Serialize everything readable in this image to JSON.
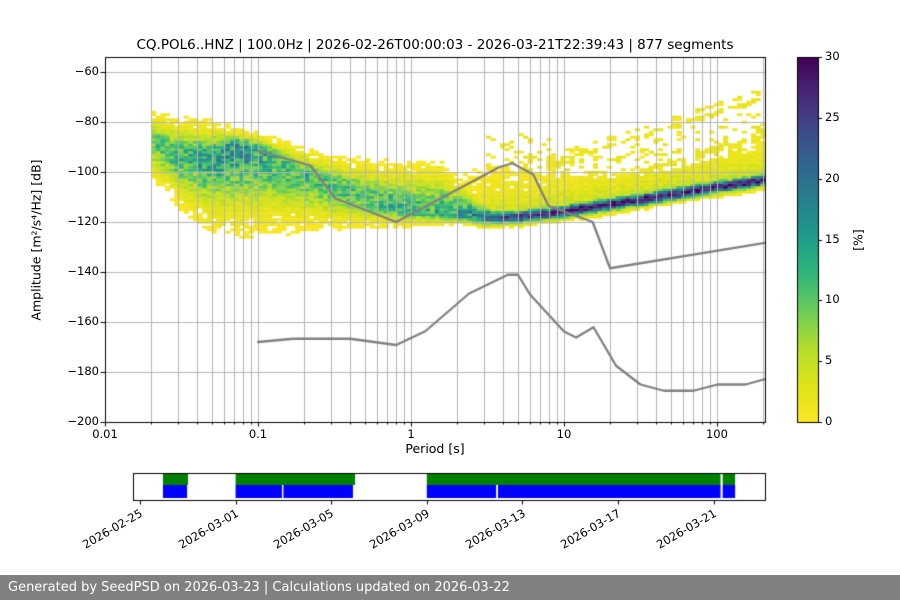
{
  "title": "CQ.POL6..HNZ | 100.0Hz | 2026-02-26T00:00:03 - 2026-03-21T22:39:43 | 877 segments",
  "footer": {
    "text": "Generated by SeedPSD on 2026-03-23 | Calculations updated on 2026-03-22",
    "bg": "#808080",
    "fg": "#ffffff"
  },
  "chart_data": {
    "type": "heatmap",
    "title": "CQ.POL6..HNZ | 100.0Hz | 2026-02-26T00:00:03 - 2026-03-21T22:39:43 | 877 segments",
    "xlabel": "Period [s]",
    "ylabel": "Amplitude [m²/s⁴/Hz] [dB]",
    "xscale": "log",
    "xlim": [
      0.01,
      206
    ],
    "ylim": [
      -200,
      -54
    ],
    "grid": true,
    "grid_color": "#b3b3b3",
    "x_ticks": [
      {
        "value": 0.01,
        "label": "0.01"
      },
      {
        "value": 0.1,
        "label": "0.1"
      },
      {
        "value": 1,
        "label": "1"
      },
      {
        "value": 10,
        "label": "10"
      },
      {
        "value": 100,
        "label": "100"
      }
    ],
    "y_ticks": [
      {
        "value": -60,
        "label": "−60"
      },
      {
        "value": -80,
        "label": "−80"
      },
      {
        "value": -100,
        "label": "−100"
      },
      {
        "value": -120,
        "label": "−120"
      },
      {
        "value": -140,
        "label": "−140"
      },
      {
        "value": -160,
        "label": "−160"
      },
      {
        "value": -180,
        "label": "−180"
      },
      {
        "value": -200,
        "label": "−200"
      }
    ],
    "colorbar": {
      "label": "[%]",
      "min": 0,
      "max": 30,
      "ticks": [
        {
          "value": 0,
          "label": "0"
        },
        {
          "value": 5,
          "label": "5"
        },
        {
          "value": 10,
          "label": "10"
        },
        {
          "value": 15,
          "label": "15"
        },
        {
          "value": 20,
          "label": "20"
        },
        {
          "value": 25,
          "label": "25"
        },
        {
          "value": 30,
          "label": "30"
        }
      ],
      "colormap": "viridis_r",
      "viridis_stops": [
        [
          68,
          1,
          84
        ],
        [
          72,
          40,
          120
        ],
        [
          62,
          73,
          137
        ],
        [
          49,
          104,
          142
        ],
        [
          38,
          130,
          142
        ],
        [
          31,
          158,
          137
        ],
        [
          53,
          183,
          121
        ],
        [
          110,
          206,
          88
        ],
        [
          181,
          222,
          43
        ],
        [
          223,
          227,
          24
        ],
        [
          253,
          231,
          37
        ]
      ]
    },
    "ppsd_cloud": {
      "period_range": [
        0.02,
        206
      ],
      "mode_curve": [
        [
          0.02,
          -88
        ],
        [
          0.03,
          -93
        ],
        [
          0.045,
          -94.5
        ],
        [
          0.06,
          -91.5
        ],
        [
          0.075,
          -89.5
        ],
        [
          0.1,
          -91.5
        ],
        [
          0.13,
          -95
        ],
        [
          0.18,
          -99.5
        ],
        [
          0.25,
          -103.5
        ],
        [
          0.35,
          -107
        ],
        [
          0.5,
          -110
        ],
        [
          0.7,
          -113
        ],
        [
          1.0,
          -115
        ],
        [
          1.5,
          -116
        ],
        [
          2.0,
          -117
        ],
        [
          3.0,
          -118.5
        ],
        [
          5.0,
          -118
        ],
        [
          8.0,
          -116.5
        ],
        [
          12.0,
          -115
        ],
        [
          20.0,
          -113
        ],
        [
          40.0,
          -110
        ],
        [
          70.0,
          -107.5
        ],
        [
          100.0,
          -106
        ],
        [
          150.0,
          -104.5
        ],
        [
          206.0,
          -103
        ]
      ],
      "top_curve": [
        [
          0.02,
          -76
        ],
        [
          0.03,
          -79
        ],
        [
          0.05,
          -81
        ],
        [
          0.07,
          -83
        ],
        [
          0.1,
          -85
        ],
        [
          0.15,
          -88
        ],
        [
          0.2,
          -91
        ],
        [
          0.3,
          -94
        ],
        [
          0.5,
          -96
        ],
        [
          0.8,
          -97.5
        ],
        [
          1.5,
          -97
        ],
        [
          3.0,
          -98
        ],
        [
          6.0,
          -100
        ],
        [
          10.0,
          -102.5
        ],
        [
          20.0,
          -103.5
        ],
        [
          50.0,
          -100
        ],
        [
          100.0,
          -95
        ],
        [
          150.0,
          -92
        ],
        [
          206.0,
          -89
        ]
      ],
      "bottom_curve": [
        [
          0.02,
          -103
        ],
        [
          0.025,
          -108
        ],
        [
          0.03,
          -114
        ],
        [
          0.04,
          -121
        ],
        [
          0.05,
          -124
        ],
        [
          0.08,
          -125
        ],
        [
          0.2,
          -124
        ],
        [
          0.4,
          -123
        ],
        [
          0.8,
          -122.5
        ],
        [
          1.5,
          -121.5
        ],
        [
          3.0,
          -121
        ],
        [
          5.0,
          -120.5
        ],
        [
          10.0,
          -119
        ],
        [
          20.0,
          -116.5
        ],
        [
          40.0,
          -113.5
        ],
        [
          70.0,
          -111
        ],
        [
          100.0,
          -109.5
        ],
        [
          150.0,
          -107.5
        ],
        [
          206.0,
          -106
        ]
      ],
      "peak_percent": [
        [
          0.02,
          10
        ],
        [
          0.03,
          12
        ],
        [
          0.05,
          14
        ],
        [
          0.075,
          16
        ],
        [
          0.1,
          14
        ],
        [
          0.15,
          12
        ],
        [
          0.25,
          11
        ],
        [
          0.5,
          11
        ],
        [
          0.8,
          12
        ],
        [
          1.5,
          12
        ],
        [
          2.5,
          16
        ],
        [
          3.5,
          24
        ],
        [
          5,
          27
        ],
        [
          8,
          28
        ],
        [
          15,
          30
        ],
        [
          30,
          30
        ],
        [
          60,
          30
        ],
        [
          100,
          30
        ],
        [
          150,
          29
        ],
        [
          206,
          28
        ]
      ]
    },
    "outlier_streaks": [
      {
        "t": [
          2,
          206
        ],
        "db": [
          -108,
          -70
        ],
        "double": true,
        "density": 0.72
      },
      {
        "t": [
          5,
          206
        ],
        "db": [
          -114,
          -85
        ],
        "double": false,
        "density": 0.8
      },
      {
        "t": [
          11,
          206
        ],
        "db": [
          -110,
          -92
        ],
        "double": false,
        "density": 0.5
      }
    ],
    "noise_models": {
      "color": "#808080",
      "nhnm": [
        [
          0.1,
          -91.5
        ],
        [
          0.22,
          -97.4
        ],
        [
          0.32,
          -110.5
        ],
        [
          0.8,
          -120.0
        ],
        [
          3.8,
          -98.0
        ],
        [
          4.6,
          -96.5
        ],
        [
          6.3,
          -101.0
        ],
        [
          7.9,
          -113.5
        ],
        [
          15.4,
          -120.0
        ],
        [
          20.0,
          -138.5
        ],
        [
          354.8,
          -126.0
        ]
      ],
      "nlnm": [
        [
          0.1,
          -168.0
        ],
        [
          0.17,
          -166.7
        ],
        [
          0.4,
          -166.7
        ],
        [
          0.8,
          -169.2
        ],
        [
          1.24,
          -163.7
        ],
        [
          2.4,
          -148.6
        ],
        [
          4.3,
          -141.1
        ],
        [
          5.0,
          -141.1
        ],
        [
          6.0,
          -149.0
        ],
        [
          10.0,
          -163.8
        ],
        [
          12.0,
          -166.2
        ],
        [
          15.6,
          -162.1
        ],
        [
          21.9,
          -177.5
        ],
        [
          31.6,
          -185.0
        ],
        [
          45.0,
          -187.5
        ],
        [
          70.0,
          -187.5
        ],
        [
          101.0,
          -185.0
        ],
        [
          154.0,
          -185.0
        ],
        [
          328.0,
          -179.4
        ]
      ]
    }
  },
  "timeline": {
    "origin_date": "2026-02-25",
    "tick_labels": [
      "2026-02-25",
      "2026-03-01",
      "2026-03-05",
      "2026-03-09",
      "2026-03-13",
      "2026-03-17",
      "2026-03-21"
    ],
    "tick_days": [
      0,
      4,
      8,
      12,
      16,
      20,
      24
    ],
    "range_days": [
      -0.29,
      26.15
    ],
    "green": "#008000",
    "blue": "#0000ff",
    "green_segments": [
      [
        0.96,
        2.01
      ],
      [
        4.0,
        9.0
      ],
      [
        12.0,
        24.29
      ],
      [
        24.38,
        24.9
      ]
    ],
    "blue_segments": [
      [
        0.96,
        1.97
      ],
      [
        4.0,
        5.94
      ],
      [
        6.0,
        8.91
      ],
      [
        12.0,
        14.9
      ],
      [
        14.98,
        24.29
      ],
      [
        24.38,
        24.9
      ]
    ]
  }
}
